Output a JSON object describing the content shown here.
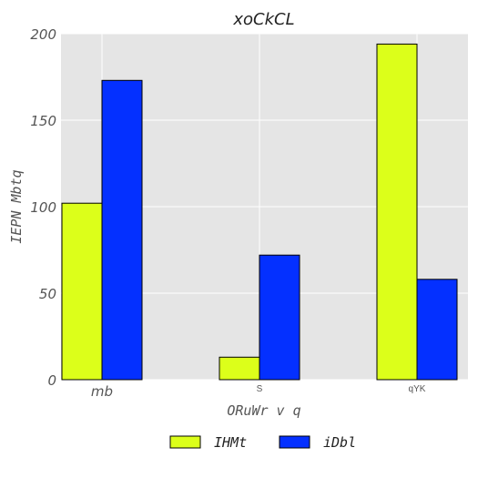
{
  "chart_data": {
    "type": "bar",
    "title": "xoCkCL",
    "xlabel": "ORuWr v q",
    "ylabel": "IEPN Mbtq",
    "categories": [
      "mb",
      "S",
      "qYK"
    ],
    "series": [
      {
        "name": "IHMt",
        "color": "#dcff1a",
        "values": [
          102,
          13,
          194
        ]
      },
      {
        "name": "iDbl",
        "color": "#0430ff",
        "values": [
          173,
          72,
          58
        ]
      }
    ],
    "ylim": [
      0,
      200
    ],
    "yticks": [
      "0",
      "50",
      "100",
      "150",
      "200"
    ],
    "grid": true,
    "legend_position": "bottom-center"
  }
}
